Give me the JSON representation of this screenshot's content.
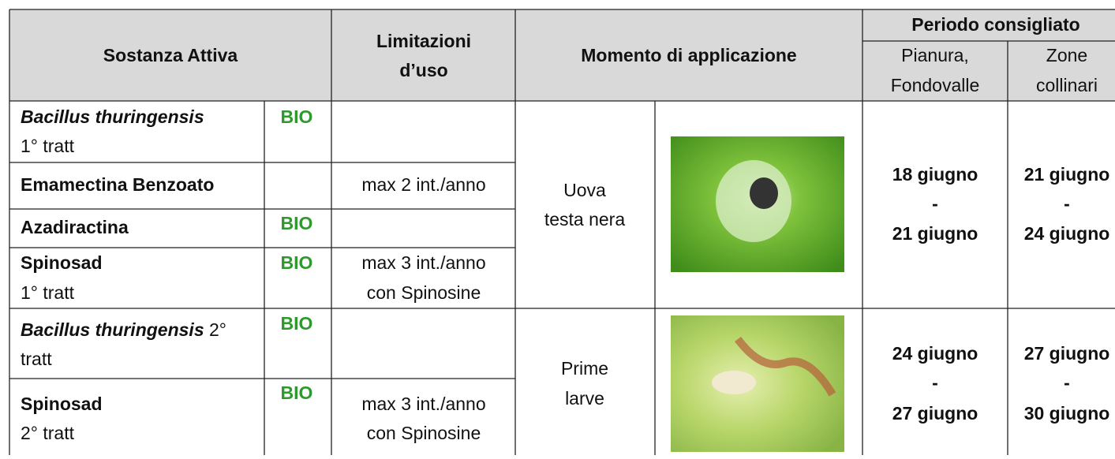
{
  "header": {
    "sostanza": "Sostanza Attiva",
    "limitazioni": [
      "Limitazioni",
      "d’uso"
    ],
    "momento": "Momento di applicazione",
    "periodo": "Periodo consigliato",
    "pianura": [
      "Pianura,",
      "Fondovalle"
    ],
    "zone": [
      "Zone",
      "collinari"
    ]
  },
  "rows": [
    {
      "name": "Bacillus thuringensis",
      "note": "1° tratt",
      "bio": "BIO"
    },
    {
      "name": "Emamectina Benzoato",
      "limit": [
        "max 2 int./anno"
      ]
    },
    {
      "name": "Azadiractina",
      "bio": "BIO"
    },
    {
      "name": "Spinosad",
      "note": "1° tratt",
      "bio": "BIO",
      "limit": [
        "max 3 int./anno",
        "con Spinosine"
      ]
    },
    {
      "name": "Bacillus thuringensis",
      "suffix": " 2°",
      "note": "tratt",
      "bio": "BIO"
    },
    {
      "name": "Spinosad",
      "note": "2° tratt",
      "bio": "BIO",
      "limit": [
        "max 3 int./anno",
        "con Spinosine"
      ]
    }
  ],
  "groups": [
    {
      "momento": [
        "Uova",
        "testa nera"
      ],
      "pianura": [
        "18 giugno",
        "-",
        "21 giugno"
      ],
      "zone": [
        "21 giugno",
        "-",
        "24 giugno"
      ]
    },
    {
      "momento": [
        "Prime",
        "larve"
      ],
      "pianura": [
        "24 giugno",
        "-",
        "27 giugno"
      ],
      "zone": [
        "27 giugno",
        "-",
        "30 giugno"
      ]
    }
  ]
}
